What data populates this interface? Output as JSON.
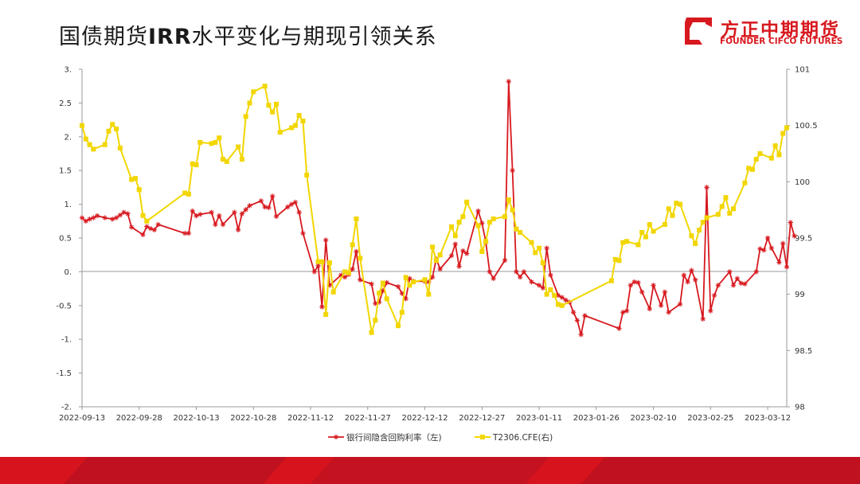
{
  "header": {
    "title_prefix": "国债期货",
    "title_bold": "IRR",
    "title_suffix": "水平变化与期现引领关系"
  },
  "logo": {
    "name_cn": "方正中期期货",
    "name_en": "FOUNDER CIFCO FUTURES",
    "icon": "founder-logo-mark"
  },
  "colors": {
    "irr": "#d7191f",
    "futures": "#f2d600",
    "axis": "#999999",
    "footer_red": "#d7141d",
    "footer_dark": "#b30f1a"
  },
  "chart_data": {
    "type": "line",
    "x_tick_labels": [
      "2022-09-13",
      "2022-09-28",
      "2022-10-13",
      "2022-10-28",
      "2022-11-12",
      "2022-11-27",
      "2022-12-12",
      "2022-12-27",
      "2023-01-11",
      "2023-01-26",
      "2023-02-10",
      "2023-02-25",
      "2023-03-12"
    ],
    "x_range": [
      "2022-09-13",
      "2023-03-17"
    ],
    "y_left": {
      "range": [
        -2,
        3
      ],
      "tick_values": [
        -2,
        -1.5,
        -1,
        -0.5,
        0,
        0.5,
        1,
        1.5,
        2,
        2.5,
        3
      ],
      "tick_labels": [
        "-2.",
        "-1.5",
        "-1.",
        "-0.5",
        "0.",
        "0.5",
        "1.",
        "1.5",
        "2.",
        "2.5",
        "3."
      ]
    },
    "y_right": {
      "range": [
        98,
        101
      ],
      "tick_values": [
        98,
        98.5,
        99,
        99.5,
        100,
        100.5,
        101
      ],
      "tick_labels": [
        "98",
        "98.5",
        "99",
        "99.5",
        "100",
        "100.5",
        "101"
      ]
    },
    "grid": false,
    "legend_position": "bottom-center",
    "series": [
      {
        "name": "银行间隐含回购利率（左)",
        "axis": "left",
        "marker": "asterisk",
        "points": [
          [
            "2022-09-13",
            0.8
          ],
          [
            "2022-09-14",
            0.75
          ],
          [
            "2022-09-15",
            0.78
          ],
          [
            "2022-09-16",
            0.8
          ],
          [
            "2022-09-17",
            0.83
          ],
          [
            "2022-09-19",
            0.8
          ],
          [
            "2022-09-21",
            0.78
          ],
          [
            "2022-09-22",
            0.8
          ],
          [
            "2022-09-23",
            0.84
          ],
          [
            "2022-09-24",
            0.88
          ],
          [
            "2022-09-25",
            0.86
          ],
          [
            "2022-09-26",
            0.66
          ],
          [
            "2022-09-29",
            0.55
          ],
          [
            "2022-09-30",
            0.67
          ],
          [
            "2022-10-01",
            0.64
          ],
          [
            "2022-10-02",
            0.62
          ],
          [
            "2022-10-03",
            0.7
          ],
          [
            "2022-10-10",
            0.57
          ],
          [
            "2022-10-11",
            0.57
          ],
          [
            "2022-10-12",
            0.9
          ],
          [
            "2022-10-13",
            0.83
          ],
          [
            "2022-10-14",
            0.85
          ],
          [
            "2022-10-17",
            0.88
          ],
          [
            "2022-10-18",
            0.7
          ],
          [
            "2022-10-19",
            0.83
          ],
          [
            "2022-10-20",
            0.7
          ],
          [
            "2022-10-23",
            0.88
          ],
          [
            "2022-10-24",
            0.62
          ],
          [
            "2022-10-25",
            0.86
          ],
          [
            "2022-10-26",
            0.92
          ],
          [
            "2022-10-27",
            0.98
          ],
          [
            "2022-10-30",
            1.05
          ],
          [
            "2022-10-31",
            0.96
          ],
          [
            "2022-11-01",
            0.95
          ],
          [
            "2022-11-02",
            1.12
          ],
          [
            "2022-11-03",
            0.82
          ],
          [
            "2022-11-06",
            0.96
          ],
          [
            "2022-11-07",
            1.0
          ],
          [
            "2022-11-08",
            1.03
          ],
          [
            "2022-11-09",
            0.88
          ],
          [
            "2022-11-10",
            0.57
          ],
          [
            "2022-11-13",
            0.0
          ],
          [
            "2022-11-14",
            0.09
          ],
          [
            "2022-11-15",
            -0.52
          ],
          [
            "2022-11-16",
            0.47
          ],
          [
            "2022-11-17",
            -0.2
          ],
          [
            "2022-11-20",
            -0.05
          ],
          [
            "2022-11-21",
            -0.08
          ],
          [
            "2022-11-22",
            -0.04
          ],
          [
            "2022-11-23",
            0.04
          ],
          [
            "2022-11-24",
            0.3
          ],
          [
            "2022-11-25",
            -0.12
          ],
          [
            "2022-11-28",
            -0.18
          ],
          [
            "2022-11-29",
            -0.47
          ],
          [
            "2022-11-30",
            -0.45
          ],
          [
            "2022-12-01",
            -0.28
          ],
          [
            "2022-12-02",
            -0.16
          ],
          [
            "2022-12-05",
            -0.22
          ],
          [
            "2022-12-06",
            -0.32
          ],
          [
            "2022-12-07",
            -0.4
          ],
          [
            "2022-12-08",
            -0.1
          ],
          [
            "2022-12-09",
            -0.14
          ],
          [
            "2022-12-12",
            -0.14
          ],
          [
            "2022-12-13",
            -0.15
          ],
          [
            "2022-12-14",
            -0.08
          ],
          [
            "2022-12-15",
            0.19
          ],
          [
            "2022-12-16",
            0.04
          ],
          [
            "2022-12-19",
            0.24
          ],
          [
            "2022-12-20",
            0.41
          ],
          [
            "2022-12-21",
            0.08
          ],
          [
            "2022-12-22",
            0.31
          ],
          [
            "2022-12-23",
            0.27
          ],
          [
            "2022-12-26",
            0.9
          ],
          [
            "2022-12-27",
            0.72
          ],
          [
            "2022-12-28",
            0.44
          ],
          [
            "2022-12-29",
            0.0
          ],
          [
            "2022-12-30",
            -0.1
          ],
          [
            "2023-01-02",
            0.17
          ],
          [
            "2023-01-03",
            2.82
          ],
          [
            "2023-01-04",
            1.5
          ],
          [
            "2023-01-05",
            0.0
          ],
          [
            "2023-01-06",
            -0.08
          ],
          [
            "2023-01-07",
            0.0
          ],
          [
            "2023-01-09",
            -0.15
          ],
          [
            "2023-01-11",
            -0.2
          ],
          [
            "2023-01-12",
            -0.24
          ],
          [
            "2023-01-13",
            0.35
          ],
          [
            "2023-01-14",
            -0.05
          ],
          [
            "2023-01-16",
            -0.35
          ],
          [
            "2023-01-17",
            -0.38
          ],
          [
            "2023-01-18",
            -0.42
          ],
          [
            "2023-01-19",
            -0.45
          ],
          [
            "2023-01-20",
            -0.6
          ],
          [
            "2023-01-21",
            -0.72
          ],
          [
            "2023-01-22",
            -0.93
          ],
          [
            "2023-01-23",
            -0.65
          ],
          [
            "2023-02-01",
            -0.84
          ],
          [
            "2023-02-02",
            -0.6
          ],
          [
            "2023-02-03",
            -0.58
          ],
          [
            "2023-02-04",
            -0.2
          ],
          [
            "2023-02-05",
            -0.15
          ],
          [
            "2023-02-06",
            -0.16
          ],
          [
            "2023-02-07",
            -0.3
          ],
          [
            "2023-02-09",
            -0.55
          ],
          [
            "2023-02-10",
            -0.2
          ],
          [
            "2023-02-12",
            -0.5
          ],
          [
            "2023-02-13",
            -0.3
          ],
          [
            "2023-02-14",
            -0.6
          ],
          [
            "2023-02-17",
            -0.48
          ],
          [
            "2023-02-18",
            -0.05
          ],
          [
            "2023-02-19",
            -0.15
          ],
          [
            "2023-02-20",
            0.02
          ],
          [
            "2023-02-21",
            -0.12
          ],
          [
            "2023-02-23",
            -0.7
          ],
          [
            "2023-02-24",
            1.25
          ],
          [
            "2023-02-25",
            -0.58
          ],
          [
            "2023-02-26",
            -0.35
          ],
          [
            "2023-02-27",
            -0.2
          ],
          [
            "2023-03-02",
            0.0
          ],
          [
            "2023-03-03",
            -0.2
          ],
          [
            "2023-03-04",
            -0.1
          ],
          [
            "2023-03-05",
            -0.17
          ],
          [
            "2023-03-06",
            -0.18
          ],
          [
            "2023-03-09",
            0.0
          ],
          [
            "2023-03-10",
            0.34
          ],
          [
            "2023-03-11",
            0.32
          ],
          [
            "2023-03-12",
            0.5
          ],
          [
            "2023-03-13",
            0.35
          ],
          [
            "2023-03-15",
            0.14
          ],
          [
            "2023-03-16",
            0.42
          ],
          [
            "2023-03-17",
            0.07
          ],
          [
            "2023-03-18",
            0.73
          ],
          [
            "2023-03-19",
            0.53
          ]
        ]
      },
      {
        "name": "T2306.CFE(右)",
        "axis": "right",
        "marker": "square",
        "points": [
          [
            "2022-09-13",
            100.5
          ],
          [
            "2022-09-14",
            100.38
          ],
          [
            "2022-09-15",
            100.33
          ],
          [
            "2022-09-16",
            100.29
          ],
          [
            "2022-09-19",
            100.33
          ],
          [
            "2022-09-20",
            100.45
          ],
          [
            "2022-09-21",
            100.51
          ],
          [
            "2022-09-22",
            100.47
          ],
          [
            "2022-09-23",
            100.3
          ],
          [
            "2022-09-26",
            100.02
          ],
          [
            "2022-09-27",
            100.03
          ],
          [
            "2022-09-28",
            99.93
          ],
          [
            "2022-09-29",
            99.7
          ],
          [
            "2022-09-30",
            99.65
          ],
          [
            "2022-10-10",
            99.9
          ],
          [
            "2022-10-11",
            99.89
          ],
          [
            "2022-10-12",
            100.16
          ],
          [
            "2022-10-13",
            100.15
          ],
          [
            "2022-10-14",
            100.35
          ],
          [
            "2022-10-17",
            100.34
          ],
          [
            "2022-10-18",
            100.35
          ],
          [
            "2022-10-19",
            100.39
          ],
          [
            "2022-10-20",
            100.2
          ],
          [
            "2022-10-21",
            100.18
          ],
          [
            "2022-10-24",
            100.31
          ],
          [
            "2022-10-25",
            100.2
          ],
          [
            "2022-10-26",
            100.58
          ],
          [
            "2022-10-27",
            100.7
          ],
          [
            "2022-10-28",
            100.8
          ],
          [
            "2022-10-31",
            100.85
          ],
          [
            "2022-11-01",
            100.68
          ],
          [
            "2022-11-02",
            100.62
          ],
          [
            "2022-11-03",
            100.69
          ],
          [
            "2022-11-04",
            100.44
          ],
          [
            "2022-11-07",
            100.48
          ],
          [
            "2022-11-08",
            100.5
          ],
          [
            "2022-11-09",
            100.59
          ],
          [
            "2022-11-10",
            100.54
          ],
          [
            "2022-11-11",
            100.06
          ],
          [
            "2022-11-14",
            99.29
          ],
          [
            "2022-11-15",
            99.29
          ],
          [
            "2022-11-16",
            98.82
          ],
          [
            "2022-11-17",
            99.28
          ],
          [
            "2022-11-18",
            99.02
          ],
          [
            "2022-11-21",
            99.2
          ],
          [
            "2022-11-22",
            99.19
          ],
          [
            "2022-11-23",
            99.44
          ],
          [
            "2022-11-24",
            99.67
          ],
          [
            "2022-11-25",
            99.32
          ],
          [
            "2022-11-28",
            98.66
          ],
          [
            "2022-11-29",
            98.77
          ],
          [
            "2022-11-30",
            99.01
          ],
          [
            "2022-12-01",
            99.1
          ],
          [
            "2022-12-02",
            98.96
          ],
          [
            "2022-12-05",
            98.72
          ],
          [
            "2022-12-06",
            98.84
          ],
          [
            "2022-12-07",
            99.15
          ],
          [
            "2022-12-08",
            99.08
          ],
          [
            "2022-12-09",
            99.11
          ],
          [
            "2022-12-12",
            99.13
          ],
          [
            "2022-12-13",
            99.0
          ],
          [
            "2022-12-14",
            99.42
          ],
          [
            "2022-12-15",
            99.3
          ],
          [
            "2022-12-16",
            99.35
          ],
          [
            "2022-12-19",
            99.6
          ],
          [
            "2022-12-20",
            99.52
          ],
          [
            "2022-12-21",
            99.64
          ],
          [
            "2022-12-22",
            99.69
          ],
          [
            "2022-12-23",
            99.82
          ],
          [
            "2022-12-26",
            99.61
          ],
          [
            "2022-12-27",
            99.38
          ],
          [
            "2022-12-28",
            99.47
          ],
          [
            "2022-12-29",
            99.64
          ],
          [
            "2022-12-30",
            99.67
          ],
          [
            "2023-01-02",
            99.69
          ],
          [
            "2023-01-03",
            99.84
          ],
          [
            "2023-01-04",
            99.75
          ],
          [
            "2023-01-05",
            99.58
          ],
          [
            "2023-01-06",
            99.55
          ],
          [
            "2023-01-09",
            99.46
          ],
          [
            "2023-01-10",
            99.37
          ],
          [
            "2023-01-11",
            99.41
          ],
          [
            "2023-01-12",
            99.28
          ],
          [
            "2023-01-13",
            99.0
          ],
          [
            "2023-01-14",
            99.04
          ],
          [
            "2023-01-15",
            98.99
          ],
          [
            "2023-01-16",
            98.91
          ],
          [
            "2023-01-17",
            98.9
          ],
          [
            "2023-01-30",
            99.12
          ],
          [
            "2023-01-31",
            99.31
          ],
          [
            "2023-02-01",
            99.3
          ],
          [
            "2023-02-02",
            99.46
          ],
          [
            "2023-02-03",
            99.47
          ],
          [
            "2023-02-06",
            99.44
          ],
          [
            "2023-02-07",
            99.55
          ],
          [
            "2023-02-08",
            99.51
          ],
          [
            "2023-02-09",
            99.62
          ],
          [
            "2023-02-10",
            99.56
          ],
          [
            "2023-02-13",
            99.62
          ],
          [
            "2023-02-14",
            99.76
          ],
          [
            "2023-02-15",
            99.7
          ],
          [
            "2023-02-16",
            99.81
          ],
          [
            "2023-02-17",
            99.8
          ],
          [
            "2023-02-20",
            99.52
          ],
          [
            "2023-02-21",
            99.45
          ],
          [
            "2023-02-22",
            99.57
          ],
          [
            "2023-02-23",
            99.64
          ],
          [
            "2023-02-24",
            99.68
          ],
          [
            "2023-02-27",
            99.71
          ],
          [
            "2023-02-28",
            99.78
          ],
          [
            "2023-03-01",
            99.86
          ],
          [
            "2023-03-02",
            99.72
          ],
          [
            "2023-03-03",
            99.76
          ],
          [
            "2023-03-06",
            99.99
          ],
          [
            "2023-03-07",
            100.12
          ],
          [
            "2023-03-08",
            100.11
          ],
          [
            "2023-03-09",
            100.2
          ],
          [
            "2023-03-10",
            100.25
          ],
          [
            "2023-03-13",
            100.21
          ],
          [
            "2023-03-14",
            100.32
          ],
          [
            "2023-03-15",
            100.24
          ],
          [
            "2023-03-16",
            100.43
          ],
          [
            "2023-03-17",
            100.48
          ]
        ]
      }
    ]
  }
}
